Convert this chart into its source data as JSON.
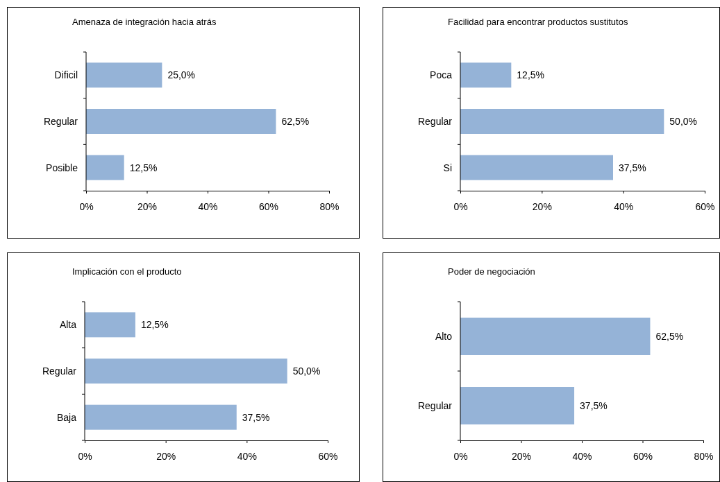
{
  "chart_data": [
    {
      "type": "bar",
      "orientation": "horizontal",
      "title": "Amenaza de integración hacia atrás",
      "categories": [
        "Dificil",
        "Regular",
        "Posible"
      ],
      "values": [
        25,
        62.5,
        12.5
      ],
      "value_labels": [
        "25,0%",
        "62,5%",
        "12,5%"
      ],
      "color": "#95b3d7",
      "xlim": [
        0,
        80
      ],
      "xticks": [
        {
          "value": 0,
          "label": "0%"
        },
        {
          "value": 20,
          "label": "20%"
        },
        {
          "value": 40,
          "label": "40%"
        },
        {
          "value": 60,
          "label": "60%"
        },
        {
          "value": 80,
          "label": "80%"
        }
      ]
    },
    {
      "type": "bar",
      "orientation": "horizontal",
      "title": "Facilidad para encontrar productos sustitutos",
      "categories": [
        "Poca",
        "Regular",
        "Si"
      ],
      "values": [
        12.5,
        50,
        37.5
      ],
      "value_labels": [
        "12,5%",
        "50,0%",
        "37,5%"
      ],
      "color": "#95b3d7",
      "xlim": [
        0,
        60
      ],
      "xticks": [
        {
          "value": 0,
          "label": "0%"
        },
        {
          "value": 20,
          "label": "20%"
        },
        {
          "value": 40,
          "label": "40%"
        },
        {
          "value": 60,
          "label": "60%"
        }
      ]
    },
    {
      "type": "bar",
      "orientation": "horizontal",
      "title": "Implicación con el producto",
      "categories": [
        "Alta",
        "Regular",
        "Baja"
      ],
      "values": [
        12.5,
        50,
        37.5
      ],
      "value_labels": [
        "12,5%",
        "50,0%",
        "37,5%"
      ],
      "color": "#95b3d7",
      "xlim": [
        0,
        60
      ],
      "xticks": [
        {
          "value": 0,
          "label": "0%"
        },
        {
          "value": 20,
          "label": "20%"
        },
        {
          "value": 40,
          "label": "40%"
        },
        {
          "value": 60,
          "label": "60%"
        }
      ]
    },
    {
      "type": "bar",
      "orientation": "horizontal",
      "title": "Poder de negociación",
      "categories": [
        "Alto",
        "Regular"
      ],
      "values": [
        62.5,
        37.5
      ],
      "value_labels": [
        "62,5%",
        "37,5%"
      ],
      "color": "#95b3d7",
      "xlim": [
        0,
        80
      ],
      "xticks": [
        {
          "value": 0,
          "label": "0%"
        },
        {
          "value": 20,
          "label": "20%"
        },
        {
          "value": 40,
          "label": "40%"
        },
        {
          "value": 60,
          "label": "60%"
        },
        {
          "value": 80,
          "label": "80%"
        }
      ]
    }
  ]
}
